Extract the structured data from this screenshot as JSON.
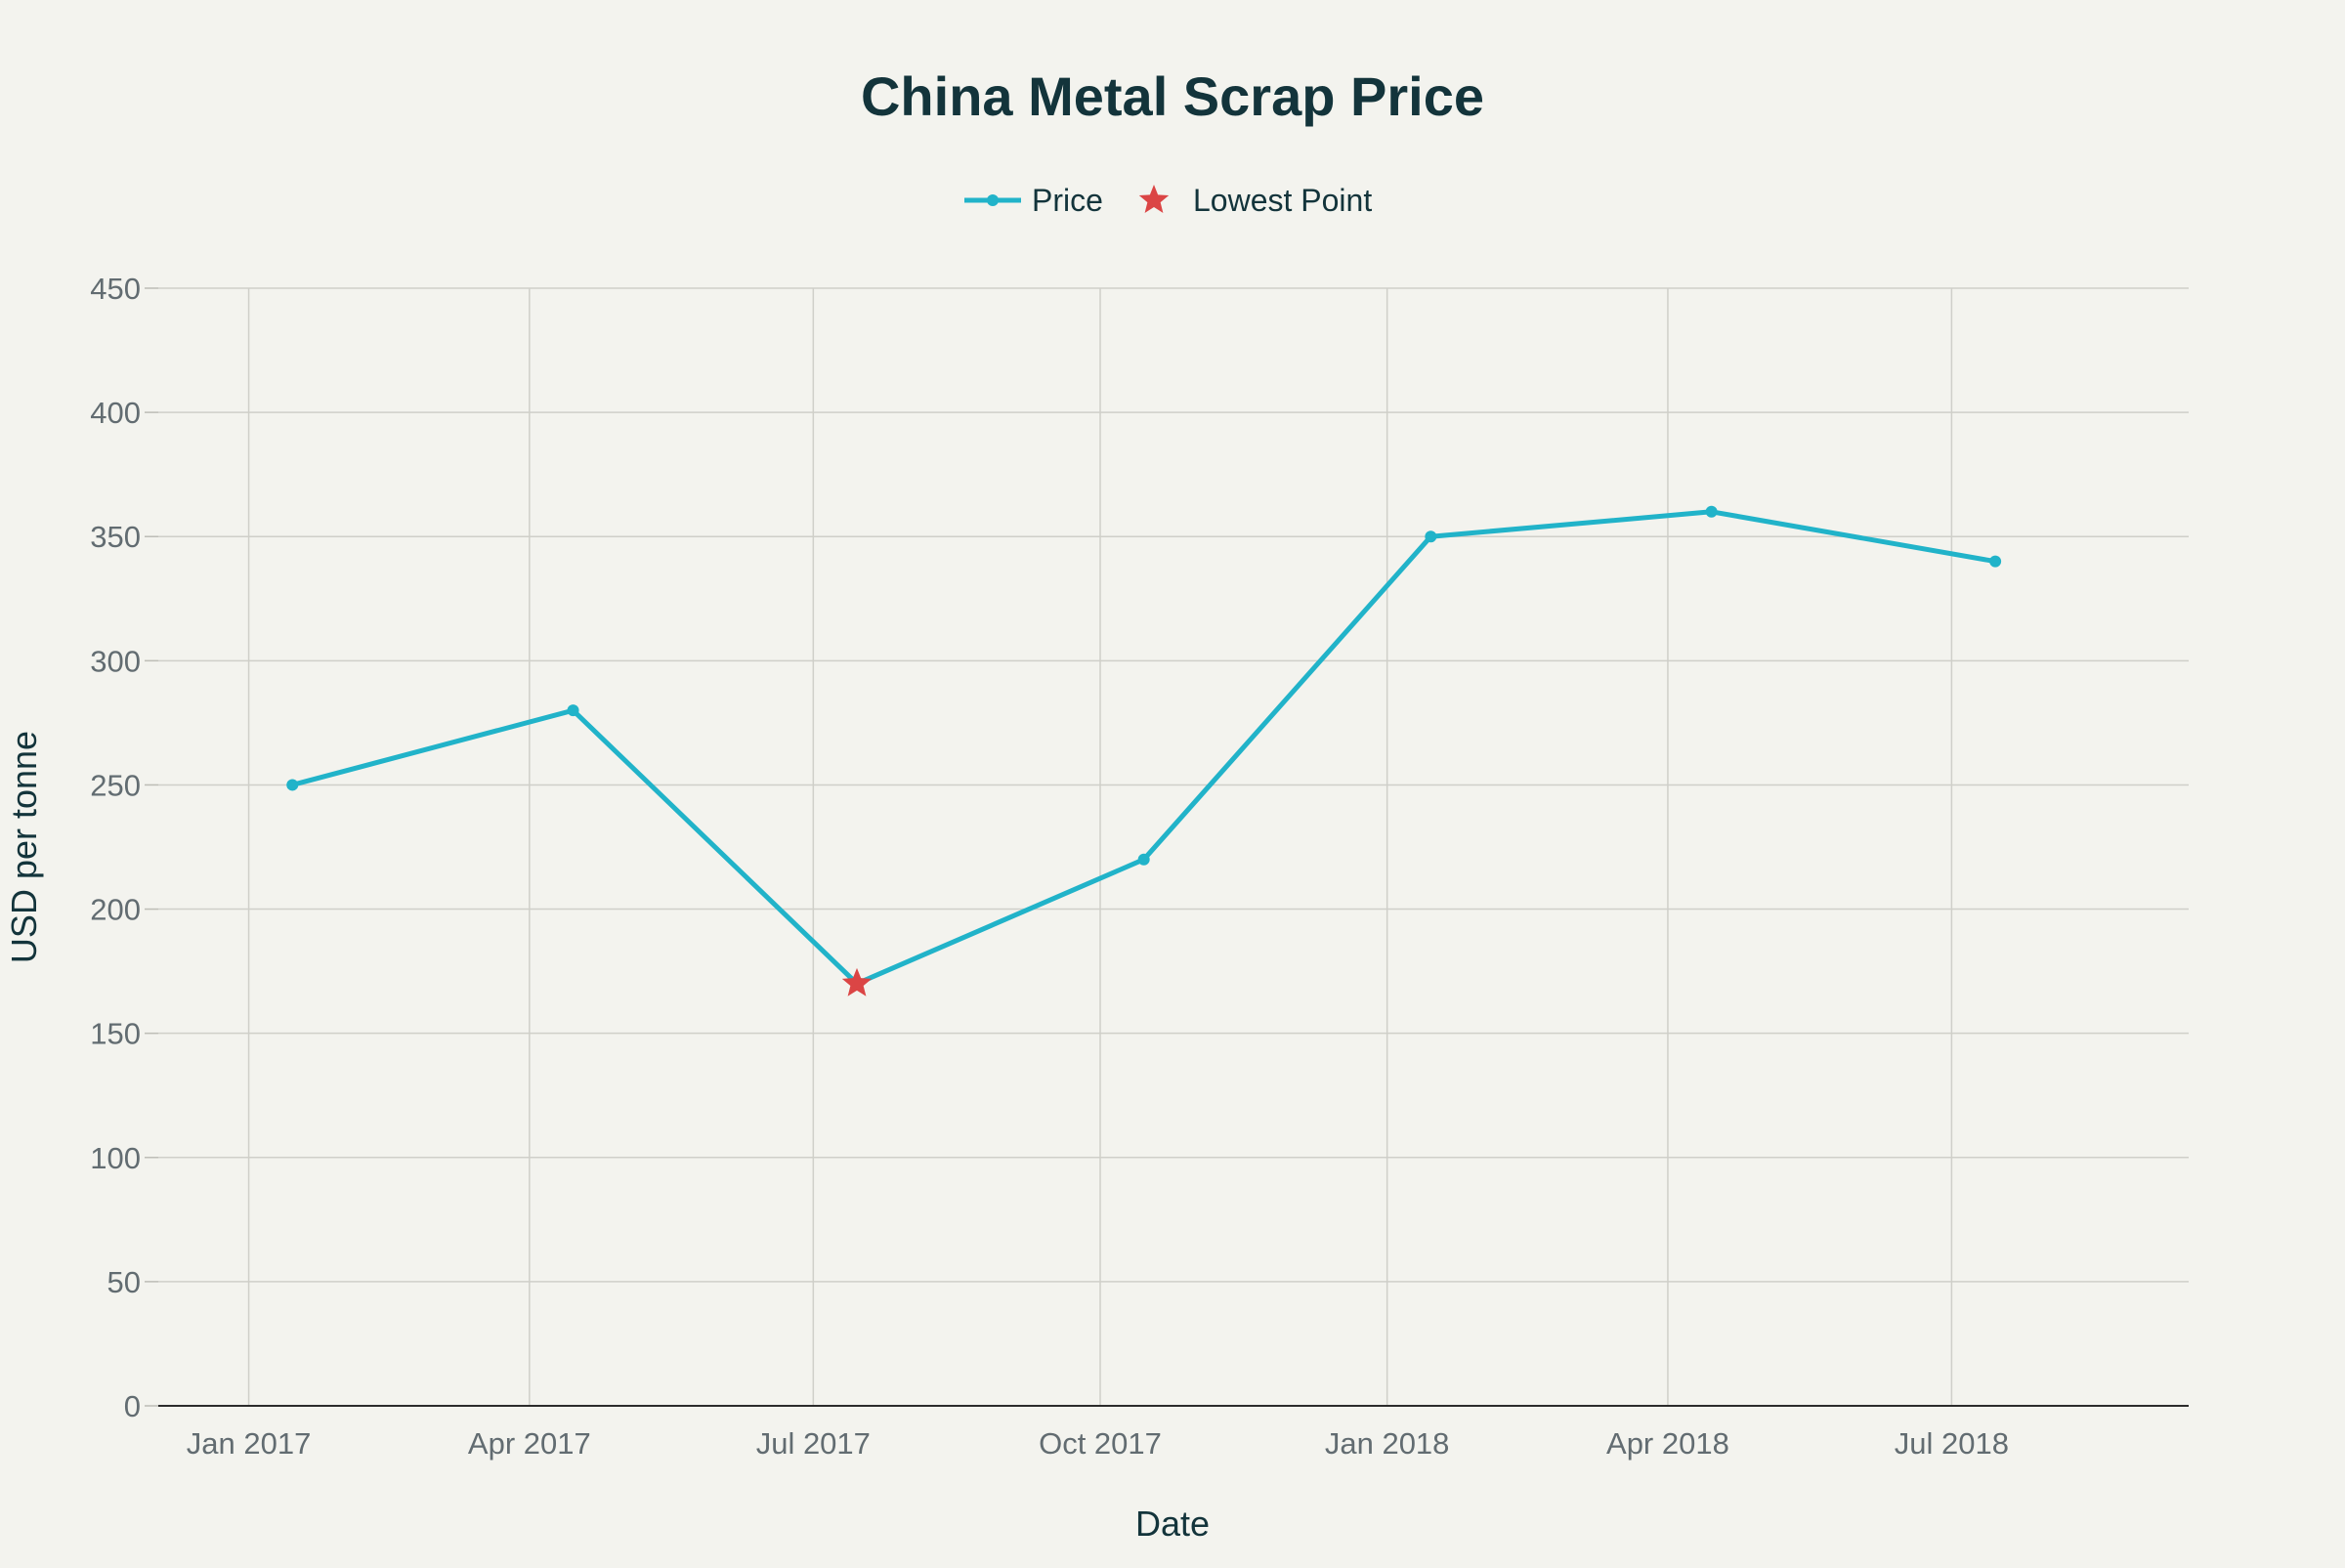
{
  "chart_data": {
    "type": "line",
    "title": "China Metal Scrap Price",
    "xlabel": "Date",
    "ylabel": "USD per tonne",
    "x_ticks": [
      "Jan 2017",
      "Apr 2017",
      "Jul 2017",
      "Oct 2017",
      "Jan 2018",
      "Apr 2018",
      "Jul 2018"
    ],
    "y_ticks": [
      0,
      50,
      100,
      150,
      200,
      250,
      300,
      350,
      400,
      450
    ],
    "ylim": [
      0,
      450
    ],
    "xlim": [
      "2016-12-03",
      "2018-09-15"
    ],
    "grid": true,
    "legend_position": "top-center",
    "series": [
      {
        "name": "Price",
        "color": "#21b3c9",
        "marker": "circle",
        "points": [
          {
            "date": "2017-01-15",
            "value": 250
          },
          {
            "date": "2017-04-15",
            "value": 280
          },
          {
            "date": "2017-07-15",
            "value": 170
          },
          {
            "date": "2017-10-15",
            "value": 220
          },
          {
            "date": "2018-01-15",
            "value": 350
          },
          {
            "date": "2018-04-15",
            "value": 360
          },
          {
            "date": "2018-07-15",
            "value": 340
          }
        ]
      },
      {
        "name": "Lowest Point",
        "color": "#db4545",
        "marker": "star",
        "points": [
          {
            "date": "2017-07-15",
            "value": 170
          }
        ]
      }
    ]
  }
}
